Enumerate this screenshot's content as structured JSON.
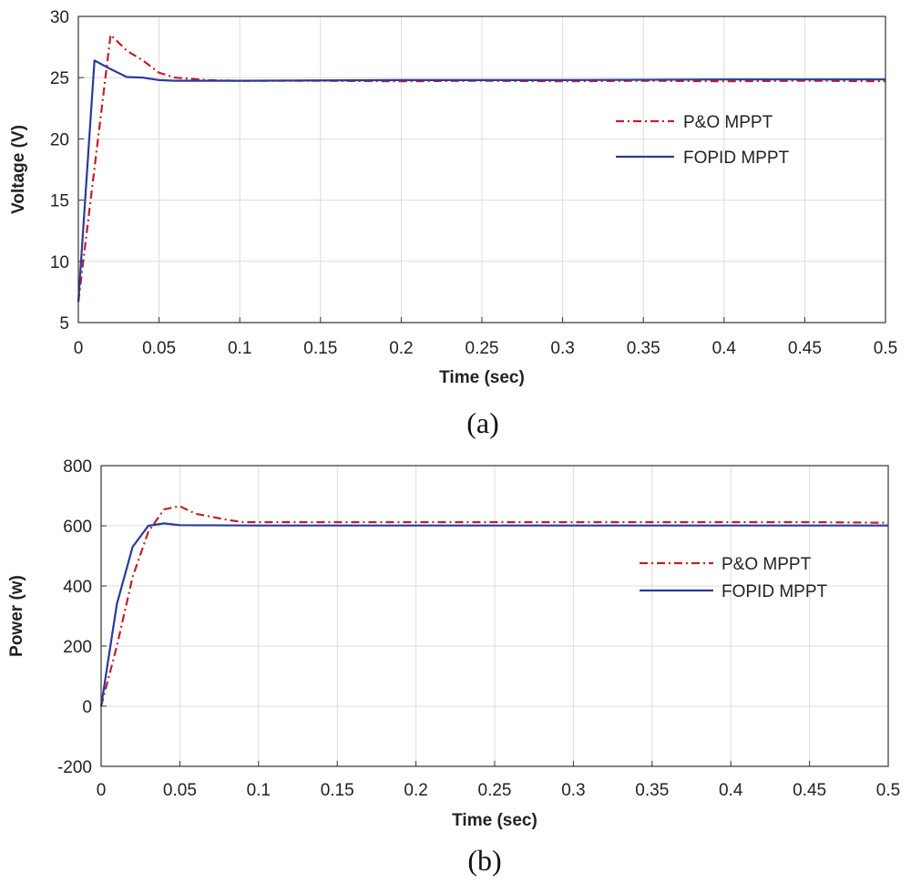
{
  "chart_data": [
    {
      "type": "line",
      "caption": "(a)",
      "xlabel": "Time (sec)",
      "ylabel": "Voltage (V)",
      "xlim": [
        0,
        0.5
      ],
      "ylim": [
        5,
        30
      ],
      "xticks": [
        0,
        0.05,
        0.1,
        0.15,
        0.2,
        0.25,
        0.3,
        0.35,
        0.4,
        0.45,
        0.5
      ],
      "xtick_labels": [
        "0",
        "0.05",
        "0.1",
        "0.15",
        "0.2",
        "0.25",
        "0.3",
        "0.35",
        "0.4",
        "0.45",
        "0.5"
      ],
      "yticks": [
        5,
        10,
        15,
        20,
        25,
        30
      ],
      "ytick_labels": [
        "5",
        "10",
        "15",
        "20",
        "25",
        "30"
      ],
      "grid": true,
      "legend_position": "right",
      "series": [
        {
          "name": "P&O MPPT",
          "color": "#c0202a",
          "style": "dashdot",
          "x": [
            0,
            0.02,
            0.03,
            0.04,
            0.05,
            0.06,
            0.08,
            0.1,
            0.15,
            0.2,
            0.25,
            0.3,
            0.35,
            0.4,
            0.45,
            0.5
          ],
          "y": [
            6.7,
            28.5,
            27.2,
            26.4,
            25.4,
            25.0,
            24.8,
            24.75,
            24.75,
            24.7,
            24.75,
            24.7,
            24.75,
            24.7,
            24.75,
            24.7
          ]
        },
        {
          "name": "FOPID MPPT",
          "color": "#2b3a9a",
          "style": "solid",
          "x": [
            0,
            0.01,
            0.02,
            0.03,
            0.04,
            0.05,
            0.06,
            0.1,
            0.2,
            0.3,
            0.4,
            0.5
          ],
          "y": [
            6.7,
            26.4,
            25.7,
            25.05,
            25.0,
            24.8,
            24.75,
            24.75,
            24.8,
            24.8,
            24.85,
            24.85
          ]
        }
      ]
    },
    {
      "type": "line",
      "caption": "(b)",
      "xlabel": "Time (sec)",
      "ylabel": "Power (w)",
      "xlim": [
        0,
        0.5
      ],
      "ylim": [
        -200,
        800
      ],
      "xticks": [
        0,
        0.05,
        0.1,
        0.15,
        0.2,
        0.25,
        0.3,
        0.35,
        0.4,
        0.45,
        0.5
      ],
      "xtick_labels": [
        "0",
        "0.05",
        "0.1",
        "0.15",
        "0.2",
        "0.25",
        "0.3",
        "0.35",
        "0.4",
        "0.45",
        "0.5"
      ],
      "yticks": [
        -200,
        0,
        200,
        400,
        600,
        800
      ],
      "ytick_labels": [
        "-200",
        "0",
        "200",
        "400",
        "600",
        "800"
      ],
      "grid": true,
      "legend_position": "right",
      "series": [
        {
          "name": "P&O MPPT",
          "color": "#c0202a",
          "style": "dashdot",
          "x": [
            0,
            0.01,
            0.02,
            0.03,
            0.04,
            0.05,
            0.06,
            0.08,
            0.09,
            0.1,
            0.15,
            0.2,
            0.25,
            0.3,
            0.35,
            0.4,
            0.45,
            0.5
          ],
          "y": [
            0,
            200,
            430,
            580,
            655,
            665,
            640,
            620,
            612,
            612,
            612,
            612,
            612,
            612,
            612,
            612,
            612,
            610
          ]
        },
        {
          "name": "FOPID MPPT",
          "color": "#2b3a9a",
          "style": "solid",
          "x": [
            0,
            0.01,
            0.02,
            0.03,
            0.04,
            0.05,
            0.1,
            0.2,
            0.3,
            0.4,
            0.5
          ],
          "y": [
            0,
            340,
            530,
            600,
            608,
            602,
            601,
            601,
            601,
            601,
            601
          ]
        }
      ]
    }
  ]
}
